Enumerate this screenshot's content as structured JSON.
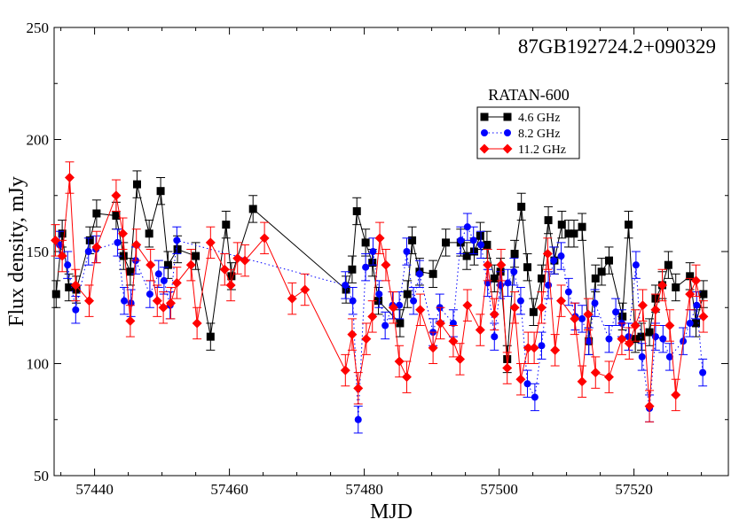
{
  "chart_data": {
    "type": "scatter",
    "title": "87GB192724.2+090329",
    "title_color": "#ff0000",
    "xlabel": "MJD",
    "ylabel": "Flux density, mJy",
    "xlim": [
      57434,
      57534
    ],
    "ylim": [
      50,
      250
    ],
    "xticks": [
      57440,
      57460,
      57480,
      57500,
      57520
    ],
    "yticks": [
      50,
      100,
      150,
      200,
      250
    ],
    "grid": false,
    "legend_title": "RATAN-600",
    "legend_position": "top-right",
    "series": [
      {
        "name": "4.6 GHz",
        "color": "#000000",
        "marker": "square",
        "line": "solid",
        "x": [
          57434.3,
          57435.2,
          57436.2,
          57437.3,
          57439.3,
          57440.3,
          57443.2,
          57444.3,
          57445.3,
          57446.3,
          57448.1,
          57449.8,
          57450.9,
          57452.3,
          57455.0,
          57457.2,
          57459.5,
          57460.3,
          57463.5,
          57477.3,
          57478.2,
          57478.9,
          57480.2,
          57481.2,
          57482.1,
          57485.3,
          57486.4,
          57487.1,
          57488.2,
          57490.2,
          57492.1,
          57494.3,
          57495.2,
          57496.3,
          57497.2,
          57498.2,
          57499.3,
          57500.2,
          57501.2,
          57502.3,
          57503.3,
          57504.2,
          57505.1,
          57506.3,
          57507.3,
          57508.2,
          57509.3,
          57510.3,
          57511.1,
          57512.3,
          57513.3,
          57514.3,
          57515.2,
          57516.3,
          57518.3,
          57519.2,
          57520.2,
          57521.1,
          57522.3,
          57523.2,
          57524.2,
          57525.1,
          57526.2,
          57528.3,
          57529.2,
          57530.3
        ],
        "y": [
          131,
          158,
          134,
          133,
          155,
          167,
          166,
          148,
          141,
          180,
          158,
          177,
          144,
          151,
          148,
          112,
          162,
          139,
          169,
          133,
          142,
          168,
          154,
          145,
          128,
          118,
          131,
          155,
          141,
          140,
          154,
          154,
          148,
          150,
          157,
          153,
          138,
          141,
          102,
          149,
          170,
          143,
          123,
          138,
          164,
          146,
          162,
          158,
          158,
          161,
          110,
          138,
          141,
          146,
          121,
          162,
          111,
          112,
          114,
          129,
          135,
          144,
          134,
          139,
          118,
          131
        ],
        "err": [
          6,
          6,
          6,
          6,
          6,
          6,
          6,
          6,
          6,
          6,
          6,
          6,
          6,
          6,
          6,
          6,
          6,
          6,
          6,
          6,
          6,
          6,
          6,
          6,
          6,
          6,
          6,
          6,
          6,
          6,
          6,
          6,
          6,
          6,
          6,
          6,
          6,
          6,
          6,
          6,
          6,
          6,
          6,
          6,
          6,
          6,
          6,
          6,
          6,
          6,
          6,
          6,
          6,
          6,
          6,
          6,
          6,
          6,
          6,
          6,
          6,
          6,
          6,
          6,
          6,
          6
        ]
      },
      {
        "name": "8.2 GHz",
        "color": "#0000ff",
        "marker": "circle",
        "line": "dotted",
        "x": [
          57434.8,
          57436.0,
          57437.2,
          57439.1,
          57440.2,
          57443.4,
          57444.4,
          57445.4,
          57446.1,
          57448.2,
          57449.5,
          57450.3,
          57451.2,
          57452.2,
          57477.2,
          57478.3,
          57479.1,
          57480.2,
          57481.3,
          57482.2,
          57483.1,
          57484.2,
          57485.2,
          57486.3,
          57487.3,
          57488.2,
          57490.2,
          57491.2,
          57493.2,
          57494.3,
          57495.3,
          57496.2,
          57497.3,
          57498.3,
          57499.3,
          57500.2,
          57501.3,
          57502.2,
          57503.2,
          57504.2,
          57505.3,
          57506.3,
          57507.3,
          57508.1,
          57509.2,
          57510.3,
          57511.3,
          57512.3,
          57513.3,
          57514.2,
          57516.3,
          57517.3,
          57518.2,
          57519.2,
          57520.3,
          57521.2,
          57522.3,
          57523.2,
          57524.3,
          57525.3,
          57527.3,
          57528.3,
          57529.3,
          57530.2
        ],
        "y": [
          153,
          144,
          124,
          150,
          151,
          154,
          128,
          127,
          146,
          131,
          140,
          137,
          126,
          155,
          135,
          128,
          75,
          143,
          150,
          131,
          117,
          126,
          126,
          150,
          128,
          140,
          114,
          125,
          118,
          155,
          161,
          155,
          153,
          136,
          112,
          135,
          136,
          141,
          128,
          91,
          85,
          108,
          135,
          146,
          148,
          132,
          121,
          120,
          110,
          127,
          111,
          123,
          118,
          112,
          144,
          103,
          80,
          112,
          111,
          103,
          110,
          118,
          126,
          96
        ],
        "err": [
          6,
          6,
          6,
          6,
          6,
          6,
          6,
          6,
          6,
          6,
          6,
          6,
          6,
          6,
          6,
          6,
          6,
          6,
          6,
          6,
          6,
          6,
          6,
          6,
          6,
          6,
          6,
          6,
          6,
          6,
          6,
          6,
          6,
          6,
          6,
          6,
          6,
          6,
          6,
          6,
          6,
          6,
          6,
          6,
          6,
          6,
          6,
          6,
          6,
          6,
          6,
          6,
          6,
          6,
          6,
          6,
          6,
          6,
          6,
          6,
          6,
          6,
          6,
          6
        ]
      },
      {
        "name": "11.2 GHz",
        "color": "#ff0000",
        "marker": "diamond",
        "line": "solid",
        "x": [
          57434.2,
          57435.2,
          57436.3,
          57437.2,
          57439.2,
          57440.3,
          57443.2,
          57444.2,
          57445.3,
          57446.2,
          57448.3,
          57449.3,
          57450.2,
          57451.3,
          57452.2,
          57454.3,
          57455.2,
          57457.2,
          57459.3,
          57460.2,
          57461.2,
          57462.3,
          57465.2,
          57469.3,
          57471.2,
          57477.2,
          57478.2,
          57479.1,
          57480.3,
          57481.2,
          57482.3,
          57483.2,
          57484.3,
          57485.2,
          57486.3,
          57488.3,
          57490.2,
          57491.3,
          57493.2,
          57494.2,
          57495.3,
          57497.2,
          57498.3,
          57499.3,
          57500.3,
          57501.2,
          57502.3,
          57503.2,
          57504.3,
          57505.2,
          57506.3,
          57507.2,
          57508.3,
          57509.2,
          57511.2,
          57512.3,
          57513.2,
          57514.3,
          57516.3,
          57518.2,
          57519.3,
          57520.2,
          57521.3,
          57522.3,
          57523.2,
          57524.2,
          57525.3,
          57526.2,
          57528.3,
          57529.2,
          57530.3
        ],
        "y": [
          155,
          148,
          183,
          135,
          128,
          152,
          175,
          158,
          119,
          153,
          144,
          128,
          125,
          127,
          136,
          144,
          118,
          154,
          142,
          135,
          147,
          146,
          156,
          129,
          133,
          97,
          113,
          89,
          111,
          121,
          156,
          144,
          125,
          101,
          94,
          124,
          107,
          118,
          110,
          102,
          126,
          115,
          144,
          122,
          144,
          98,
          125,
          93,
          107,
          107,
          125,
          149,
          106,
          128,
          120,
          92,
          122,
          96,
          94,
          111,
          109,
          117,
          126,
          81,
          124,
          135,
          117,
          86,
          131,
          137,
          121
        ],
        "err": [
          7,
          7,
          7,
          7,
          7,
          7,
          7,
          7,
          7,
          7,
          7,
          7,
          7,
          7,
          7,
          7,
          7,
          7,
          7,
          7,
          7,
          7,
          7,
          7,
          7,
          7,
          7,
          7,
          7,
          7,
          7,
          7,
          7,
          7,
          7,
          7,
          7,
          7,
          7,
          7,
          7,
          7,
          7,
          7,
          7,
          7,
          7,
          7,
          7,
          7,
          7,
          7,
          7,
          7,
          7,
          7,
          7,
          7,
          7,
          7,
          7,
          7,
          7,
          7,
          7,
          7,
          7,
          7,
          7,
          7,
          7
        ]
      }
    ]
  }
}
